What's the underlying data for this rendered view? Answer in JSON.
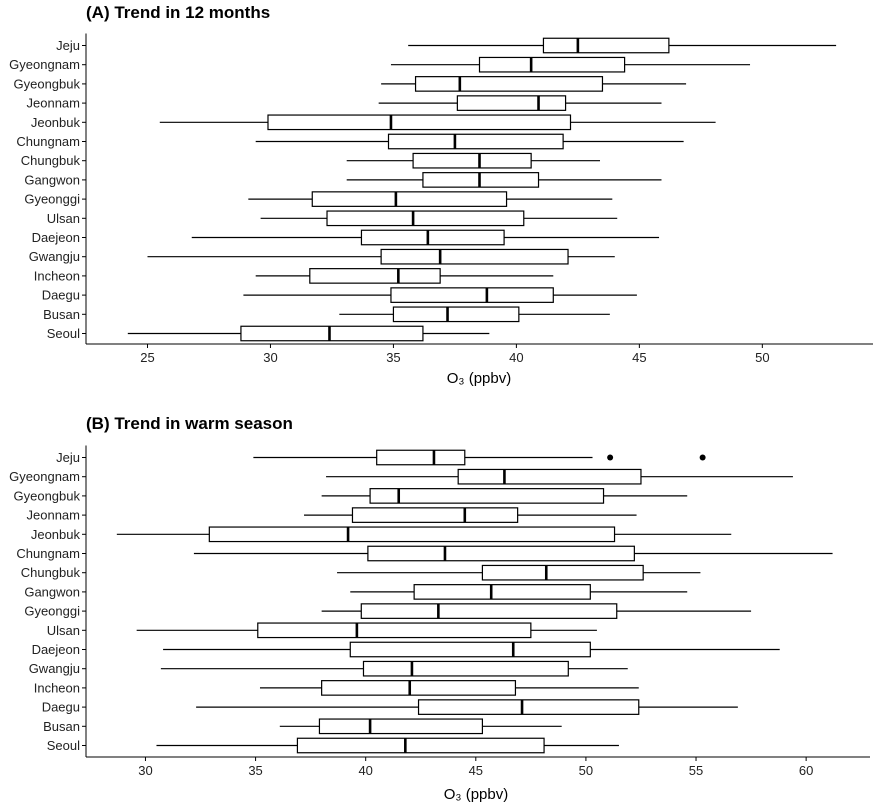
{
  "chart_data": [
    {
      "type": "boxplot",
      "title": "(A) Trend in 12 months",
      "xlabel": "O₃ (ppbv)",
      "xlim": [
        22.5,
        54.5
      ],
      "xticks": [
        25,
        30,
        35,
        40,
        45,
        50
      ],
      "categories": [
        "Jeju",
        "Gyeongnam",
        "Gyeongbuk",
        "Jeonnam",
        "Jeonbuk",
        "Chungnam",
        "Chungbuk",
        "Gangwon",
        "Gyeonggi",
        "Ulsan",
        "Daejeon",
        "Gwangju",
        "Incheon",
        "Daegu",
        "Busan",
        "Seoul"
      ],
      "boxes": [
        {
          "min": 35.6,
          "q1": 41.1,
          "median": 42.5,
          "q3": 46.2,
          "max": 53.0,
          "outliers": []
        },
        {
          "min": 34.9,
          "q1": 38.5,
          "median": 40.6,
          "q3": 44.4,
          "max": 49.5,
          "outliers": []
        },
        {
          "min": 34.5,
          "q1": 35.9,
          "median": 37.7,
          "q3": 43.5,
          "max": 46.9,
          "outliers": []
        },
        {
          "min": 34.4,
          "q1": 37.6,
          "median": 40.9,
          "q3": 42.0,
          "max": 45.9,
          "outliers": []
        },
        {
          "min": 25.5,
          "q1": 29.9,
          "median": 34.9,
          "q3": 42.2,
          "max": 48.1,
          "outliers": []
        },
        {
          "min": 29.4,
          "q1": 34.8,
          "median": 37.5,
          "q3": 41.9,
          "max": 46.8,
          "outliers": []
        },
        {
          "min": 33.1,
          "q1": 35.8,
          "median": 38.5,
          "q3": 40.6,
          "max": 43.4,
          "outliers": []
        },
        {
          "min": 33.1,
          "q1": 36.2,
          "median": 38.5,
          "q3": 40.9,
          "max": 45.9,
          "outliers": []
        },
        {
          "min": 29.1,
          "q1": 31.7,
          "median": 35.1,
          "q3": 39.6,
          "max": 43.9,
          "outliers": []
        },
        {
          "min": 29.6,
          "q1": 32.3,
          "median": 35.8,
          "q3": 40.3,
          "max": 44.1,
          "outliers": []
        },
        {
          "min": 26.8,
          "q1": 33.7,
          "median": 36.4,
          "q3": 39.5,
          "max": 45.8,
          "outliers": []
        },
        {
          "min": 25.0,
          "q1": 34.5,
          "median": 36.9,
          "q3": 42.1,
          "max": 44.0,
          "outliers": []
        },
        {
          "min": 29.4,
          "q1": 31.6,
          "median": 35.2,
          "q3": 36.9,
          "max": 41.5,
          "outliers": []
        },
        {
          "min": 28.9,
          "q1": 34.9,
          "median": 38.8,
          "q3": 41.5,
          "max": 44.9,
          "outliers": []
        },
        {
          "min": 32.8,
          "q1": 35.0,
          "median": 37.2,
          "q3": 40.1,
          "max": 43.8,
          "outliers": []
        },
        {
          "min": 24.2,
          "q1": 28.8,
          "median": 32.4,
          "q3": 36.2,
          "max": 38.9,
          "outliers": []
        }
      ]
    },
    {
      "type": "boxplot",
      "title": "(B) Trend in warm season",
      "xlabel": "O₃ (ppbv)",
      "xlim": [
        27.3,
        62.9
      ],
      "xticks": [
        30,
        35,
        40,
        45,
        50,
        55,
        60
      ],
      "categories": [
        "Jeju",
        "Gyeongnam",
        "Gyeongbuk",
        "Jeonnam",
        "Jeonbuk",
        "Chungnam",
        "Chungbuk",
        "Gangwon",
        "Gyeonggi",
        "Ulsan",
        "Daejeon",
        "Gwangju",
        "Incheon",
        "Daegu",
        "Busan",
        "Seoul"
      ],
      "boxes": [
        {
          "min": 34.9,
          "q1": 40.5,
          "median": 43.1,
          "q3": 44.5,
          "max": 50.3,
          "outliers": [
            51.1,
            55.3
          ]
        },
        {
          "min": 38.2,
          "q1": 44.2,
          "median": 46.3,
          "q3": 52.5,
          "max": 59.4,
          "outliers": []
        },
        {
          "min": 38.0,
          "q1": 40.2,
          "median": 41.5,
          "q3": 50.8,
          "max": 54.6,
          "outliers": []
        },
        {
          "min": 37.2,
          "q1": 39.4,
          "median": 44.5,
          "q3": 46.9,
          "max": 52.3,
          "outliers": []
        },
        {
          "min": 28.7,
          "q1": 32.9,
          "median": 39.2,
          "q3": 51.3,
          "max": 56.6,
          "outliers": []
        },
        {
          "min": 32.2,
          "q1": 40.1,
          "median": 43.6,
          "q3": 52.2,
          "max": 61.2,
          "outliers": []
        },
        {
          "min": 38.7,
          "q1": 45.3,
          "median": 48.2,
          "q3": 52.6,
          "max": 55.2,
          "outliers": []
        },
        {
          "min": 39.3,
          "q1": 42.2,
          "median": 45.7,
          "q3": 50.2,
          "max": 54.6,
          "outliers": []
        },
        {
          "min": 38.0,
          "q1": 39.8,
          "median": 43.3,
          "q3": 51.4,
          "max": 57.5,
          "outliers": []
        },
        {
          "min": 29.6,
          "q1": 35.1,
          "median": 39.6,
          "q3": 47.5,
          "max": 50.5,
          "outliers": []
        },
        {
          "min": 30.8,
          "q1": 39.3,
          "median": 46.7,
          "q3": 50.2,
          "max": 58.8,
          "outliers": []
        },
        {
          "min": 30.7,
          "q1": 39.9,
          "median": 42.1,
          "q3": 49.2,
          "max": 51.9,
          "outliers": []
        },
        {
          "min": 35.2,
          "q1": 38.0,
          "median": 42.0,
          "q3": 46.8,
          "max": 52.4,
          "outliers": []
        },
        {
          "min": 32.3,
          "q1": 42.4,
          "median": 47.1,
          "q3": 52.4,
          "max": 56.9,
          "outliers": []
        },
        {
          "min": 36.1,
          "q1": 37.9,
          "median": 40.2,
          "q3": 45.3,
          "max": 48.9,
          "outliers": []
        },
        {
          "min": 30.5,
          "q1": 36.9,
          "median": 41.8,
          "q3": 48.1,
          "max": 51.5,
          "outliers": []
        }
      ]
    }
  ]
}
